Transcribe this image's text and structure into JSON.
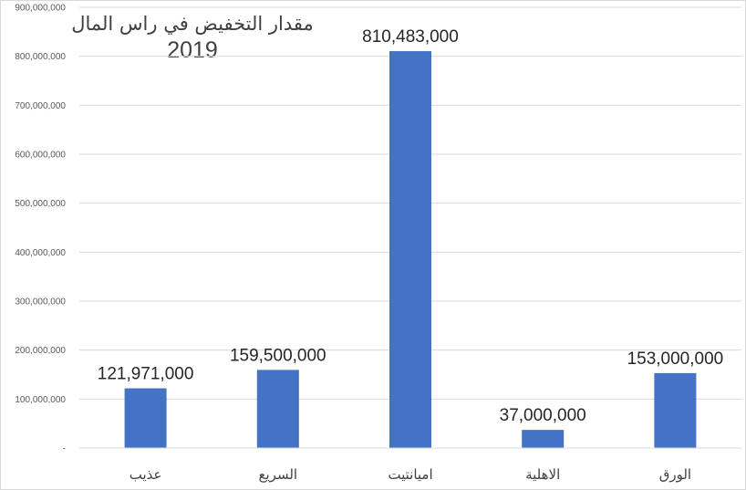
{
  "chart_data": {
    "type": "bar",
    "title": "مقدار التخفيض في راس المال",
    "subtitle": "2019",
    "xlabel": "",
    "ylabel": "",
    "categories": [
      "عذيب",
      "السريع",
      "اميانتيت",
      "الاهلية",
      "الورق"
    ],
    "values": [
      121971000,
      159500000,
      810483000,
      37000000,
      153000000
    ],
    "value_labels": [
      "121,971,000",
      "159,500,000",
      "810,483,000",
      "37,000,000",
      "153,000,000"
    ],
    "ylim": [
      0,
      900000000
    ],
    "y_ticks": [
      0,
      100000000,
      200000000,
      300000000,
      400000000,
      500000000,
      600000000,
      700000000,
      800000000,
      900000000
    ],
    "y_tick_labels": [
      "-",
      "100,000,000",
      "200,000,000",
      "300,000,000",
      "400,000,000",
      "500,000,000",
      "600,000,000",
      "700,000,000",
      "800,000,000",
      "900,000,000"
    ],
    "grid": true,
    "legend": "none",
    "bar_color": "#4472C4",
    "grid_color": "#D9D9D9"
  }
}
